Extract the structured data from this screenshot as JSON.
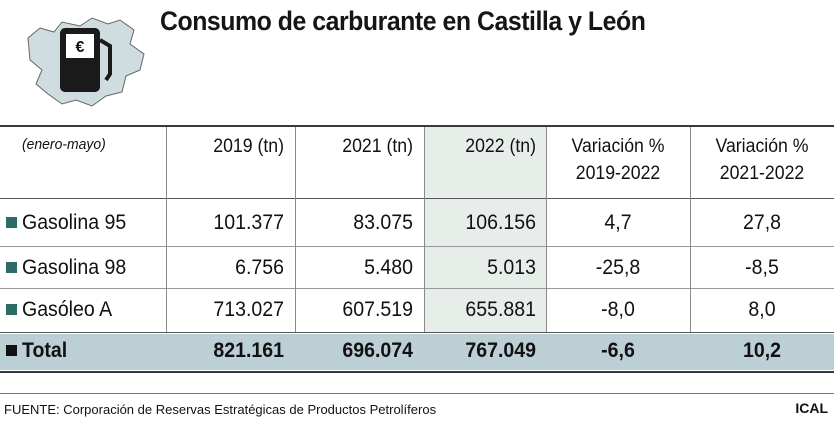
{
  "title": "Consumo de carburante en Castilla y León",
  "logo": {
    "symbol": "€"
  },
  "colors": {
    "bullet": "#2f6b66",
    "total_bg": "#bccfd5",
    "highlight_col": "#e7eeea",
    "map_fill": "#cfdde0"
  },
  "chart_data": {
    "type": "table",
    "title": "Consumo de carburante en Castilla y León",
    "period_label": "(enero-mayo)",
    "columns": [
      "2019 (tn)",
      "2021 (tn)",
      "2022 (tn)",
      "Variación %\n2019-2022",
      "Variación %\n2021-2022"
    ],
    "rows": [
      {
        "label": "Gasolina 95",
        "values": [
          "101.377",
          "83.075",
          "106.156",
          "4,7",
          "27,8"
        ]
      },
      {
        "label": "Gasolina 98",
        "values": [
          "6.756",
          "5.480",
          "5.013",
          "-25,8",
          "-8,5"
        ]
      },
      {
        "label": "Gasóleo A",
        "values": [
          "713.027",
          "607.519",
          "655.881",
          "-8,0",
          "8,0"
        ]
      }
    ],
    "total": {
      "label": "Total",
      "values": [
        "821.161",
        "696.074",
        "767.049",
        "-6,6",
        "10,2"
      ]
    }
  },
  "footer": {
    "source": "FUENTE: Corporación de Reservas Estratégicas de Productos Petrolíferos",
    "credit": "ICAL"
  }
}
